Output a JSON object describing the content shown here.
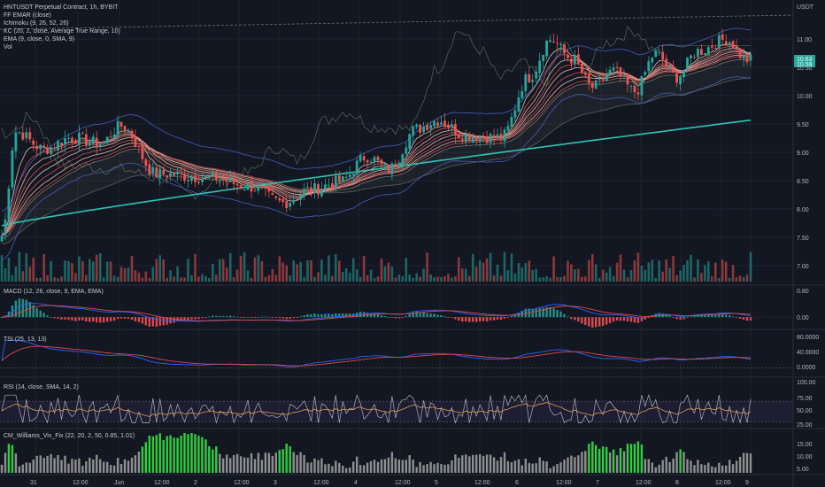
{
  "colors": {
    "background": "#131722",
    "grid": "#1f2330",
    "up": "#26a69a",
    "down": "#ef5350",
    "ema200": "#2ec4b6",
    "ribbon_up": "#e0c7b7",
    "ribbon_down": "#d9534f",
    "band": "#4a64c8",
    "cloud": "#9aa28a",
    "macd": "#2962ff",
    "signal": "#e0484a",
    "vix_hi": "#2fcf3f",
    "vix_lo": "#8f8f8f"
  },
  "header": {
    "symbol": "HNTUSDT Perpetual Contract, 1h, BYBIT",
    "indicators": [
      "FF EMAR (close)",
      "Ichimoku (9, 26, 52, 26)",
      "KC (20, 2, close, Average True Range, 10)",
      "EMA (9, close, 0, SMA, 9)",
      "Vol"
    ]
  },
  "panes": {
    "macd_label": "MACD (12, 26, close, 9, EMA, EMA)",
    "tsi_label": "TSI (25, 13, 13)",
    "rsi_label": "RSI (14, close, SMA, 14, 2)",
    "vix_label": "CM_Williams_Vix_Fix (22, 20, 2, 50, 0.85, 1.01)"
  },
  "price_axis": {
    "unit": "USDT",
    "ticks": [
      "11.00",
      "10.50",
      "10.00",
      "9.50",
      "9.00",
      "8.50",
      "8.00",
      "7.50",
      "7.00"
    ],
    "last_price": "10.63",
    "last_price_sub": "10.59"
  },
  "pane_axes": {
    "macd": [
      "0.80",
      "0.00"
    ],
    "tsi": [
      "80.0000",
      "40.0000",
      "0.0000"
    ],
    "rsi": [
      "100.00",
      "75.00",
      "50.00",
      "25.00"
    ],
    "vix": [
      "15.00",
      "10.00",
      "5.00"
    ]
  },
  "time_axis": [
    "31",
    "12:00",
    "Jun",
    "12:00",
    "2",
    "12:00",
    "3",
    "12:00",
    "4",
    "12:00",
    "5",
    "12:00",
    "6",
    "12:00",
    "7",
    "12:00",
    "8",
    "12:00",
    "9"
  ],
  "chart_data": {
    "type": "candlestick",
    "symbol": "HNTUSDT",
    "interval": "1h",
    "y_range": [
      6.75,
      11.45
    ],
    "anchors": [
      {
        "i": 0,
        "p": 7.55
      },
      {
        "i": 4,
        "p": 9.35
      },
      {
        "i": 12,
        "p": 9.05
      },
      {
        "i": 20,
        "p": 9.25
      },
      {
        "i": 28,
        "p": 9.15
      },
      {
        "i": 34,
        "p": 9.45
      },
      {
        "i": 44,
        "p": 8.62
      },
      {
        "i": 60,
        "p": 8.55
      },
      {
        "i": 70,
        "p": 8.4
      },
      {
        "i": 80,
        "p": 8.12
      },
      {
        "i": 88,
        "p": 8.35
      },
      {
        "i": 96,
        "p": 8.48
      },
      {
        "i": 104,
        "p": 8.92
      },
      {
        "i": 110,
        "p": 8.7
      },
      {
        "i": 118,
        "p": 9.4
      },
      {
        "i": 124,
        "p": 9.55
      },
      {
        "i": 132,
        "p": 9.28
      },
      {
        "i": 142,
        "p": 9.25
      },
      {
        "i": 150,
        "p": 10.3
      },
      {
        "i": 156,
        "p": 10.95
      },
      {
        "i": 162,
        "p": 10.62
      },
      {
        "i": 168,
        "p": 10.12
      },
      {
        "i": 174,
        "p": 10.4
      },
      {
        "i": 180,
        "p": 10.05
      },
      {
        "i": 186,
        "p": 10.7
      },
      {
        "i": 192,
        "p": 10.3
      },
      {
        "i": 198,
        "p": 10.75
      },
      {
        "i": 206,
        "p": 10.95
      },
      {
        "i": 212,
        "p": 10.6
      }
    ],
    "ema200": {
      "start": 7.72,
      "end": 9.55
    },
    "macd_range": [
      -0.35,
      0.95
    ],
    "tsi_range": [
      -15,
      95
    ],
    "rsi_range": [
      20,
      110
    ],
    "vix_range": [
      0,
      19
    ]
  }
}
